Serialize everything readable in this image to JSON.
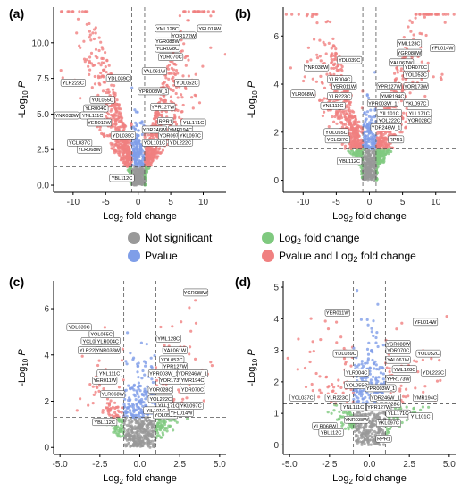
{
  "colors": {
    "not_significant": "#999999",
    "pvalue": "#7f9ee8",
    "log2fc": "#7fc97f",
    "both": "#f08080",
    "panel_border": "#333333",
    "threshold_line": "#555555",
    "label_border": "#333333"
  },
  "legend": {
    "items": [
      {
        "key": "not_significant",
        "text": "Not significant"
      },
      {
        "key": "log2fc",
        "text": "Log",
        "sub": "2",
        "rest": " fold change"
      },
      {
        "key": "pvalue",
        "text": "Pvalue"
      },
      {
        "key": "both",
        "text": "Pvalue and Log",
        "sub": "2",
        "rest": " fold change"
      }
    ]
  },
  "chart_data": [
    {
      "type": "scatter",
      "panel_label": "(a)",
      "xlabel": "Log2 fold change",
      "ylabel": "-Log10 P",
      "xlim": [
        -13,
        13.5
      ],
      "ylim": [
        -0.5,
        12.5
      ],
      "xticks": [
        -10,
        -5,
        0,
        5,
        10
      ],
      "yticks": [
        0.0,
        2.5,
        5.0,
        7.5,
        10.0
      ],
      "ytick_labels": [
        "0.0",
        "2.5",
        "5.0",
        "7.5",
        "10.0"
      ],
      "fc_cutoff": 1,
      "p_cutoff": 1.3,
      "labels": [
        {
          "t": "YML128C",
          "x": 4.5,
          "y": 11.0
        },
        {
          "t": "YFL014W",
          "x": 11.0,
          "y": 11.0
        },
        {
          "t": "YOR172W",
          "x": 7.0,
          "y": 10.5
        },
        {
          "t": "YGR088W",
          "x": 4.5,
          "y": 10.1
        },
        {
          "t": "YOR028C",
          "x": 4.5,
          "y": 9.6
        },
        {
          "t": "YDR070C",
          "x": 5.0,
          "y": 9.0
        },
        {
          "t": "YAL061W",
          "x": 2.5,
          "y": 8.0
        },
        {
          "t": "YOL052C",
          "x": 7.5,
          "y": 7.2
        },
        {
          "t": "YLR223C",
          "x": -10.0,
          "y": 7.2
        },
        {
          "t": "YDL039C",
          "x": -3.0,
          "y": 7.5
        },
        {
          "t": "YPR003W_1",
          "x": 2.3,
          "y": 6.6
        },
        {
          "t": "YOL055C",
          "x": -5.5,
          "y": 6.0
        },
        {
          "t": "YLR004C",
          "x": -6.5,
          "y": 5.4
        },
        {
          "t": "YNR038W",
          "x": -11.0,
          "y": 4.9
        },
        {
          "t": "YNL111C",
          "x": -7.0,
          "y": 4.9
        },
        {
          "t": "YPR127W",
          "x": 3.8,
          "y": 5.5
        },
        {
          "t": "YER011W",
          "x": -6.0,
          "y": 4.4
        },
        {
          "t": "RPR1",
          "x": 4.2,
          "y": 4.5
        },
        {
          "t": "YLL171C",
          "x": 8.5,
          "y": 4.4
        },
        {
          "t": "YDR246W",
          "x": 2.5,
          "y": 3.9
        },
        {
          "t": "YMR194C",
          "x": 6.5,
          "y": 3.9
        },
        {
          "t": "YDL039C",
          "x": -2.3,
          "y": 3.5
        },
        {
          "t": "YOR097C",
          "x": 5.0,
          "y": 3.5
        },
        {
          "t": "YKL097C",
          "x": 8.0,
          "y": 3.5
        },
        {
          "t": "YCL037C",
          "x": -9.0,
          "y": 3.0
        },
        {
          "t": "YOL101C",
          "x": 2.5,
          "y": 3.0
        },
        {
          "t": "YDL222C",
          "x": 6.5,
          "y": 3.0
        },
        {
          "t": "YLR068W",
          "x": -7.5,
          "y": 2.5
        },
        {
          "t": "YBL112C",
          "x": -2.5,
          "y": 0.5
        }
      ]
    },
    {
      "type": "scatter",
      "panel_label": "(b)",
      "xlabel": "Log2 fold change",
      "ylabel": "-Log10 P",
      "xlim": [
        -13,
        13
      ],
      "ylim": [
        -0.5,
        7.2
      ],
      "xticks": [
        -10,
        -5,
        0,
        5,
        10
      ],
      "yticks": [
        0,
        2,
        4,
        6
      ],
      "ytick_labels": [
        "0",
        "2",
        "4",
        "6"
      ],
      "fc_cutoff": 1,
      "p_cutoff": 1.3,
      "labels": [
        {
          "t": "YML128C",
          "x": 6.0,
          "y": 5.7
        },
        {
          "t": "YFL014W",
          "x": 11.0,
          "y": 5.5
        },
        {
          "t": "YGR088W",
          "x": 6.0,
          "y": 5.3
        },
        {
          "t": "YDL039C",
          "x": -3.0,
          "y": 5.0
        },
        {
          "t": "YAL061W",
          "x": 4.8,
          "y": 4.9
        },
        {
          "t": "YNR038W",
          "x": -8.0,
          "y": 4.7
        },
        {
          "t": "YDR070C",
          "x": 7.0,
          "y": 4.7
        },
        {
          "t": "YOL052C",
          "x": 7.0,
          "y": 4.4
        },
        {
          "t": "YLR004C",
          "x": -4.5,
          "y": 4.2
        },
        {
          "t": "YER011W",
          "x": -3.8,
          "y": 3.9
        },
        {
          "t": "YLR068W",
          "x": -10.0,
          "y": 3.6
        },
        {
          "t": "YPR127W",
          "x": 3.0,
          "y": 3.9
        },
        {
          "t": "YOR173W",
          "x": 7.0,
          "y": 3.9
        },
        {
          "t": "YLR223C",
          "x": -4.5,
          "y": 3.5
        },
        {
          "t": "YMR194C",
          "x": 3.5,
          "y": 3.5
        },
        {
          "t": "YNL111C",
          "x": -5.5,
          "y": 3.1
        },
        {
          "t": "YKL097C",
          "x": 7.0,
          "y": 3.2
        },
        {
          "t": "YPR003W_1",
          "x": 2.0,
          "y": 3.2
        },
        {
          "t": "YIL101C",
          "x": 3.0,
          "y": 2.8
        },
        {
          "t": "YLL171C",
          "x": 7.5,
          "y": 2.8
        },
        {
          "t": "YOL222C",
          "x": 3.0,
          "y": 2.5
        },
        {
          "t": "YOR028C",
          "x": 7.5,
          "y": 2.5
        },
        {
          "t": "YDR246W_1",
          "x": 2.5,
          "y": 2.2
        },
        {
          "t": "YOL055C",
          "x": -5.0,
          "y": 2.0
        },
        {
          "t": "YCL037C",
          "x": -4.8,
          "y": 1.7
        },
        {
          "t": "RPR1",
          "x": 4.0,
          "y": 1.7
        },
        {
          "t": "YBL112C",
          "x": -3.0,
          "y": 0.8
        }
      ]
    },
    {
      "type": "scatter",
      "panel_label": "(c)",
      "xlabel": "Log2 fold change",
      "ylabel": "-Log10 P",
      "xlim": [
        -5.4,
        5.4
      ],
      "ylim": [
        -0.3,
        7.2
      ],
      "xticks": [
        -5.0,
        -2.5,
        0.0,
        2.5,
        5.0
      ],
      "xtick_labels": [
        "-5.0",
        "-2.5",
        "0.0",
        "2.5",
        "5.0"
      ],
      "yticks": [
        0,
        2,
        4,
        6
      ],
      "ytick_labels": [
        "0",
        "2",
        "4",
        "6"
      ],
      "fc_cutoff": 1,
      "p_cutoff": 1.3,
      "labels": [
        {
          "t": "YGR088W",
          "x": 3.5,
          "y": 6.7
        },
        {
          "t": "YDL039C",
          "x": -3.8,
          "y": 5.2
        },
        {
          "t": "YOL055C",
          "x": -2.4,
          "y": 4.9
        },
        {
          "t": "YML128C",
          "x": 1.8,
          "y": 4.7
        },
        {
          "t": "YCL037C",
          "x": -2.9,
          "y": 4.6
        },
        {
          "t": "YLR004C",
          "x": -2.0,
          "y": 4.6
        },
        {
          "t": "YAL061W",
          "x": 2.2,
          "y": 4.2
        },
        {
          "t": "YLR223C",
          "x": -3.1,
          "y": 4.2
        },
        {
          "t": "YNR038W",
          "x": -2.0,
          "y": 4.2
        },
        {
          "t": "YOL052C",
          "x": 2.0,
          "y": 3.8
        },
        {
          "t": "YPR127W",
          "x": 2.2,
          "y": 3.5
        },
        {
          "t": "YPR003W_1",
          "x": 1.5,
          "y": 3.2
        },
        {
          "t": "YDR246W_1",
          "x": 3.3,
          "y": 3.2
        },
        {
          "t": "YNL111C",
          "x": -1.9,
          "y": 3.2
        },
        {
          "t": "YOR173W",
          "x": 2.0,
          "y": 2.9
        },
        {
          "t": "YMR194C",
          "x": 3.3,
          "y": 2.9
        },
        {
          "t": "YER011W",
          "x": -2.2,
          "y": 2.9
        },
        {
          "t": "YOR028C",
          "x": 1.3,
          "y": 2.5
        },
        {
          "t": "YDR070C",
          "x": 3.3,
          "y": 2.5
        },
        {
          "t": "YLR068W",
          "x": -1.7,
          "y": 2.3
        },
        {
          "t": "YOL222C",
          "x": 1.3,
          "y": 2.1
        },
        {
          "t": "YLL171C",
          "x": 1.8,
          "y": 1.8
        },
        {
          "t": "YKL097C",
          "x": 3.2,
          "y": 1.8
        },
        {
          "t": "YIL101C",
          "x": 1.0,
          "y": 1.6
        },
        {
          "t": "YOL052C",
          "x": 1.6,
          "y": 1.4
        },
        {
          "t": "YFL014W",
          "x": 2.6,
          "y": 1.5
        },
        {
          "t": "YBL112C",
          "x": -2.2,
          "y": 1.1
        }
      ]
    },
    {
      "type": "scatter",
      "panel_label": "(d)",
      "xlabel": "Log2 fold change",
      "ylabel": "-Log10 P",
      "xlim": [
        -5.4,
        5.4
      ],
      "ylim": [
        -0.3,
        5.2
      ],
      "xticks": [
        -5.0,
        -2.5,
        0.0,
        2.5,
        5.0
      ],
      "xtick_labels": [
        "-5.0",
        "-2.5",
        "0.0",
        "2.5",
        "5.0"
      ],
      "yticks": [
        0,
        1,
        2,
        3,
        4,
        5
      ],
      "ytick_labels": [
        "0",
        "1",
        "2",
        "3",
        "4",
        "5"
      ],
      "fc_cutoff": 1,
      "p_cutoff": 1.3,
      "labels": [
        {
          "t": "YER011W",
          "x": -2.0,
          "y": 4.2
        },
        {
          "t": "YFL014W",
          "x": 3.5,
          "y": 3.9
        },
        {
          "t": "YGR088W",
          "x": 1.8,
          "y": 3.2
        },
        {
          "t": "YDR070C",
          "x": 1.8,
          "y": 3.0
        },
        {
          "t": "YDL039C",
          "x": -1.5,
          "y": 2.9
        },
        {
          "t": "YOL052C",
          "x": 3.7,
          "y": 2.9
        },
        {
          "t": "YAL061W",
          "x": 1.8,
          "y": 2.7
        },
        {
          "t": "YML128C",
          "x": 2.2,
          "y": 2.4
        },
        {
          "t": "YLR004C",
          "x": -0.8,
          "y": 2.3
        },
        {
          "t": "YDL222C",
          "x": 4.0,
          "y": 2.3
        },
        {
          "t": "YPR173W",
          "x": 1.8,
          "y": 2.1
        },
        {
          "t": "YOL055C",
          "x": -0.8,
          "y": 1.9
        },
        {
          "t": "YPR003W_1",
          "x": 0.7,
          "y": 1.8
        },
        {
          "t": "YCL037C",
          "x": -4.2,
          "y": 1.5
        },
        {
          "t": "YLR223C",
          "x": -2.0,
          "y": 1.5
        },
        {
          "t": "YDR246W_1",
          "x": 1.0,
          "y": 1.5
        },
        {
          "t": "YMR194C",
          "x": 3.5,
          "y": 1.5
        },
        {
          "t": "YOR028C",
          "x": 1.2,
          "y": 1.3
        },
        {
          "t": "YPR127W",
          "x": 0.6,
          "y": 1.2
        },
        {
          "t": "YNL111C",
          "x": -1.0,
          "y": 1.2
        },
        {
          "t": "YLL171C",
          "x": 1.8,
          "y": 1.0
        },
        {
          "t": "YIL101C",
          "x": 3.2,
          "y": 0.9
        },
        {
          "t": "YNR038W",
          "x": -0.8,
          "y": 0.8
        },
        {
          "t": "YKL097C",
          "x": 1.2,
          "y": 0.7
        },
        {
          "t": "YLR068W",
          "x": -2.8,
          "y": 0.6
        },
        {
          "t": "YBL112C",
          "x": -2.4,
          "y": 0.4
        },
        {
          "t": "RPR1",
          "x": 0.9,
          "y": 0.2
        }
      ]
    }
  ]
}
